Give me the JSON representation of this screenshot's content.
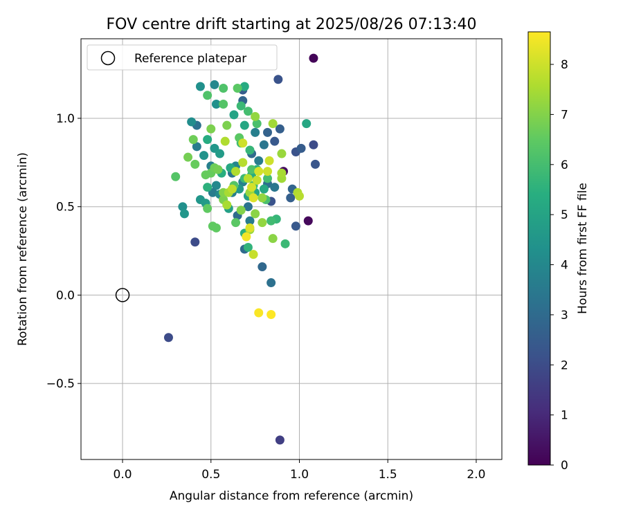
{
  "chart_data": {
    "type": "scatter",
    "title": "FOV centre drift starting at 2025/08/26 07:13:40",
    "xlabel": "Angular distance from reference (arcmin)",
    "ylabel": "Rotation from reference (arcmin)",
    "xlim": [
      -0.235,
      2.145
    ],
    "ylim": [
      -0.93,
      1.45
    ],
    "xticks": [
      0.0,
      0.5,
      1.0,
      1.5,
      2.0
    ],
    "xtick_labels": [
      "0.0",
      "0.5",
      "1.0",
      "1.5",
      "2.0"
    ],
    "yticks": [
      -0.5,
      0.0,
      0.5,
      1.0
    ],
    "ytick_labels": [
      "−0.5",
      "0.0",
      "0.5",
      "1.0"
    ],
    "grid": true,
    "legend": {
      "placement": "top-left",
      "entries": [
        "Reference platepar"
      ]
    },
    "reference_point": {
      "x": 0.0,
      "y": 0.0
    },
    "colorbar": {
      "label": "Hours from first FF file",
      "range": [
        0,
        8.65
      ],
      "ticks": [
        0,
        1,
        2,
        3,
        4,
        5,
        6,
        7,
        8
      ],
      "tick_labels": [
        "0",
        "1",
        "2",
        "3",
        "4",
        "5",
        "6",
        "7",
        "8"
      ],
      "colormap": "viridis"
    },
    "points": [
      {
        "x": 1.08,
        "y": 1.34,
        "h": 0.1
      },
      {
        "x": 1.05,
        "y": 0.42,
        "h": 0.2
      },
      {
        "x": 0.91,
        "y": 0.7,
        "h": 0.3
      },
      {
        "x": 0.89,
        "y": -0.82,
        "h": 1.6
      },
      {
        "x": 0.26,
        "y": -0.24,
        "h": 2.0
      },
      {
        "x": 0.41,
        "y": 0.3,
        "h": 2.0
      },
      {
        "x": 0.88,
        "y": 1.22,
        "h": 2.2
      },
      {
        "x": 1.08,
        "y": 0.85,
        "h": 2.0
      },
      {
        "x": 1.09,
        "y": 0.74,
        "h": 2.3
      },
      {
        "x": 0.98,
        "y": 0.81,
        "h": 2.2
      },
      {
        "x": 1.01,
        "y": 0.83,
        "h": 2.5
      },
      {
        "x": 0.98,
        "y": 0.39,
        "h": 2.4
      },
      {
        "x": 0.95,
        "y": 0.55,
        "h": 2.6
      },
      {
        "x": 0.96,
        "y": 0.6,
        "h": 2.8
      },
      {
        "x": 0.84,
        "y": 0.53,
        "h": 2.2
      },
      {
        "x": 0.86,
        "y": 0.87,
        "h": 2.4
      },
      {
        "x": 0.82,
        "y": 0.92,
        "h": 2.7
      },
      {
        "x": 0.89,
        "y": 0.94,
        "h": 2.6
      },
      {
        "x": 0.79,
        "y": 0.16,
        "h": 2.9
      },
      {
        "x": 0.84,
        "y": 0.07,
        "h": 3.2
      },
      {
        "x": 0.68,
        "y": 1.16,
        "h": 2.5
      },
      {
        "x": 0.68,
        "y": 1.1,
        "h": 2.8
      },
      {
        "x": 0.69,
        "y": 0.26,
        "h": 3.0
      },
      {
        "x": 0.73,
        "y": 0.8,
        "h": 3.0
      },
      {
        "x": 0.71,
        "y": 0.5,
        "h": 3.3
      },
      {
        "x": 0.72,
        "y": 0.42,
        "h": 3.6
      },
      {
        "x": 0.8,
        "y": 0.85,
        "h": 3.4
      },
      {
        "x": 0.77,
        "y": 0.76,
        "h": 3.6
      },
      {
        "x": 0.82,
        "y": 0.63,
        "h": 3.1
      },
      {
        "x": 0.86,
        "y": 0.61,
        "h": 3.4
      },
      {
        "x": 0.75,
        "y": 0.92,
        "h": 3.7
      },
      {
        "x": 0.65,
        "y": 0.45,
        "h": 3.0
      },
      {
        "x": 0.62,
        "y": 0.69,
        "h": 3.4
      },
      {
        "x": 0.62,
        "y": 0.58,
        "h": 3.7
      },
      {
        "x": 0.68,
        "y": 0.64,
        "h": 3.8
      },
      {
        "x": 0.64,
        "y": 0.73,
        "h": 3.9
      },
      {
        "x": 0.42,
        "y": 0.96,
        "h": 3.2
      },
      {
        "x": 0.42,
        "y": 0.84,
        "h": 3.6
      },
      {
        "x": 0.5,
        "y": 0.73,
        "h": 3.7
      },
      {
        "x": 0.53,
        "y": 0.62,
        "h": 4.0
      },
      {
        "x": 0.51,
        "y": 0.58,
        "h": 3.6
      },
      {
        "x": 0.55,
        "y": 0.57,
        "h": 4.1
      },
      {
        "x": 0.52,
        "y": 1.19,
        "h": 4.0
      },
      {
        "x": 0.53,
        "y": 1.08,
        "h": 4.3
      },
      {
        "x": 0.44,
        "y": 1.18,
        "h": 4.3
      },
      {
        "x": 0.39,
        "y": 0.98,
        "h": 4.2
      },
      {
        "x": 0.46,
        "y": 0.79,
        "h": 4.4
      },
      {
        "x": 0.52,
        "y": 0.83,
        "h": 4.5
      },
      {
        "x": 0.55,
        "y": 0.8,
        "h": 4.7
      },
      {
        "x": 0.34,
        "y": 0.5,
        "h": 4.3
      },
      {
        "x": 0.35,
        "y": 0.46,
        "h": 4.5
      },
      {
        "x": 0.44,
        "y": 0.54,
        "h": 4.5
      },
      {
        "x": 0.47,
        "y": 0.52,
        "h": 4.7
      },
      {
        "x": 0.6,
        "y": 0.49,
        "h": 4.9
      },
      {
        "x": 0.66,
        "y": 0.6,
        "h": 4.6
      },
      {
        "x": 0.71,
        "y": 0.56,
        "h": 4.8
      },
      {
        "x": 0.75,
        "y": 0.58,
        "h": 5.0
      },
      {
        "x": 0.63,
        "y": 1.02,
        "h": 5.0
      },
      {
        "x": 0.69,
        "y": 0.96,
        "h": 5.1
      },
      {
        "x": 0.69,
        "y": 1.18,
        "h": 5.3
      },
      {
        "x": 1.04,
        "y": 0.97,
        "h": 5.1
      },
      {
        "x": 0.8,
        "y": 0.6,
        "h": 5.2
      },
      {
        "x": 0.73,
        "y": 0.68,
        "h": 5.3
      },
      {
        "x": 0.76,
        "y": 0.71,
        "h": 5.4
      },
      {
        "x": 0.61,
        "y": 0.72,
        "h": 5.2
      },
      {
        "x": 0.56,
        "y": 0.69,
        "h": 5.4
      },
      {
        "x": 0.48,
        "y": 0.88,
        "h": 5.3
      },
      {
        "x": 0.48,
        "y": 0.61,
        "h": 5.5
      },
      {
        "x": 0.69,
        "y": 0.35,
        "h": 5.5
      },
      {
        "x": 0.71,
        "y": 0.27,
        "h": 5.6
      },
      {
        "x": 0.87,
        "y": 0.43,
        "h": 5.7
      },
      {
        "x": 0.92,
        "y": 0.29,
        "h": 5.8
      },
      {
        "x": 0.84,
        "y": 0.42,
        "h": 5.9
      },
      {
        "x": 0.72,
        "y": 0.82,
        "h": 5.7
      },
      {
        "x": 0.67,
        "y": 1.07,
        "h": 5.8
      },
      {
        "x": 0.67,
        "y": 0.86,
        "h": 5.9
      },
      {
        "x": 0.69,
        "y": 0.66,
        "h": 5.8
      },
      {
        "x": 0.74,
        "y": 0.62,
        "h": 5.9
      },
      {
        "x": 0.82,
        "y": 0.66,
        "h": 6.0
      },
      {
        "x": 0.81,
        "y": 0.54,
        "h": 6.1
      },
      {
        "x": 0.71,
        "y": 1.04,
        "h": 6.0
      },
      {
        "x": 0.73,
        "y": 0.71,
        "h": 6.2
      },
      {
        "x": 0.76,
        "y": 0.97,
        "h": 6.1
      },
      {
        "x": 0.57,
        "y": 1.17,
        "h": 6.2
      },
      {
        "x": 0.57,
        "y": 1.08,
        "h": 6.3
      },
      {
        "x": 0.48,
        "y": 1.13,
        "h": 6.2
      },
      {
        "x": 0.65,
        "y": 1.17,
        "h": 6.4
      },
      {
        "x": 0.66,
        "y": 0.89,
        "h": 6.4
      },
      {
        "x": 0.63,
        "y": 0.62,
        "h": 6.3
      },
      {
        "x": 0.64,
        "y": 0.41,
        "h": 6.4
      },
      {
        "x": 0.53,
        "y": 0.38,
        "h": 6.5
      },
      {
        "x": 0.51,
        "y": 0.39,
        "h": 6.5
      },
      {
        "x": 0.48,
        "y": 0.49,
        "h": 6.5
      },
      {
        "x": 0.47,
        "y": 0.68,
        "h": 6.6
      },
      {
        "x": 0.5,
        "y": 0.69,
        "h": 6.6
      },
      {
        "x": 0.52,
        "y": 0.72,
        "h": 6.7
      },
      {
        "x": 0.54,
        "y": 0.71,
        "h": 6.8
      },
      {
        "x": 0.41,
        "y": 0.74,
        "h": 6.6
      },
      {
        "x": 0.4,
        "y": 0.88,
        "h": 6.7
      },
      {
        "x": 0.37,
        "y": 0.78,
        "h": 6.8
      },
      {
        "x": 0.3,
        "y": 0.67,
        "h": 6.3
      },
      {
        "x": 0.5,
        "y": 0.94,
        "h": 6.9
      },
      {
        "x": 0.59,
        "y": 0.96,
        "h": 6.9
      },
      {
        "x": 0.57,
        "y": 0.54,
        "h": 6.9
      },
      {
        "x": 0.57,
        "y": 0.58,
        "h": 7.0
      },
      {
        "x": 0.67,
        "y": 0.48,
        "h": 7.0
      },
      {
        "x": 0.75,
        "y": 0.46,
        "h": 7.1
      },
      {
        "x": 0.79,
        "y": 0.41,
        "h": 7.2
      },
      {
        "x": 0.85,
        "y": 0.32,
        "h": 7.1
      },
      {
        "x": 0.72,
        "y": 0.37,
        "h": 7.3
      },
      {
        "x": 0.72,
        "y": 0.58,
        "h": 7.3
      },
      {
        "x": 0.79,
        "y": 0.55,
        "h": 7.2
      },
      {
        "x": 0.75,
        "y": 1.01,
        "h": 7.2
      },
      {
        "x": 0.85,
        "y": 0.97,
        "h": 7.4
      },
      {
        "x": 0.9,
        "y": 0.8,
        "h": 7.3
      },
      {
        "x": 0.9,
        "y": 0.66,
        "h": 7.4
      },
      {
        "x": 0.9,
        "y": 0.69,
        "h": 7.5
      },
      {
        "x": 0.99,
        "y": 0.58,
        "h": 7.6
      },
      {
        "x": 1.0,
        "y": 0.56,
        "h": 7.7
      },
      {
        "x": 0.59,
        "y": 0.51,
        "h": 7.5
      },
      {
        "x": 0.6,
        "y": 0.58,
        "h": 7.5
      },
      {
        "x": 0.58,
        "y": 0.87,
        "h": 7.6
      },
      {
        "x": 0.64,
        "y": 0.7,
        "h": 7.6
      },
      {
        "x": 0.68,
        "y": 0.75,
        "h": 7.7
      },
      {
        "x": 0.71,
        "y": 0.66,
        "h": 7.7
      },
      {
        "x": 0.62,
        "y": 0.6,
        "h": 7.8
      },
      {
        "x": 0.74,
        "y": 0.23,
        "h": 7.9
      },
      {
        "x": 0.76,
        "y": 0.65,
        "h": 7.9
      },
      {
        "x": 0.82,
        "y": 0.7,
        "h": 8.0
      },
      {
        "x": 0.83,
        "y": 0.76,
        "h": 8.0
      },
      {
        "x": 0.77,
        "y": 0.7,
        "h": 8.1
      },
      {
        "x": 0.73,
        "y": 0.61,
        "h": 8.1
      },
      {
        "x": 0.72,
        "y": 0.38,
        "h": 8.2
      },
      {
        "x": 0.7,
        "y": 0.33,
        "h": 8.5
      },
      {
        "x": 0.77,
        "y": -0.1,
        "h": 8.6
      },
      {
        "x": 0.84,
        "y": -0.11,
        "h": 8.65
      },
      {
        "x": 0.74,
        "y": 0.55,
        "h": 8.2
      },
      {
        "x": 0.68,
        "y": 0.86,
        "h": 8.0
      }
    ]
  }
}
